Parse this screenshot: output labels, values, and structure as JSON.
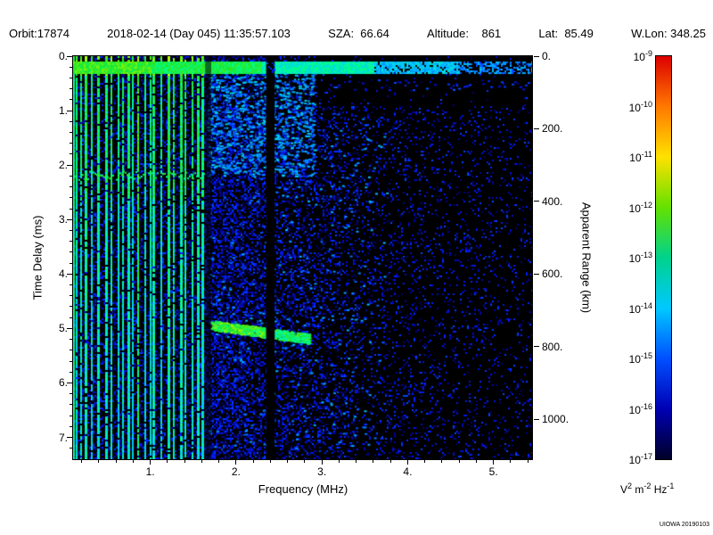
{
  "header": {
    "orbit": "Orbit:17874",
    "datetime": "2018-02-14 (Day 045) 11:35:57.103",
    "sza": "SZA:  66.64",
    "altitude": "Altitude:    861",
    "lat": "Lat:  85.49",
    "wlon": "W.Lon: 348.25"
  },
  "credit": "UIOWA 20190103",
  "chart_data": {
    "type": "heatmap",
    "description": "Radar sounder ionogram: received spectral density versus frequency and time delay; bright vertical electron plasma oscillation harmonics below 1.6 MHz, strong horizontal band near 0.2 ms delay across all frequencies, ionospheric echo near 5 ms between 1.7 and 2.9 MHz, diffuse blue noise cloud fading toward high frequency, dark absorption gap near 2.4 MHz",
    "xlabel": "Frequency (MHz)",
    "ylabel_left": "Time Delay (ms)",
    "ylabel_right": "Apparent Range (km)",
    "x_range": [
      0.1,
      5.45
    ],
    "x_ticks": [
      1,
      2,
      3,
      4,
      5
    ],
    "x_minor_step": 0.2,
    "y_range": [
      0,
      7.4
    ],
    "y_ticks": [
      0,
      1,
      2,
      3,
      4,
      5,
      6,
      7
    ],
    "y_minor_step": 0.2,
    "y2_ticks_km": [
      0,
      200,
      400,
      600,
      800,
      1000
    ],
    "range_km_per_ms": 150,
    "colorbar": {
      "scale": "log",
      "tick_exponents": [
        -9,
        -10,
        -11,
        -12,
        -13,
        -14,
        -15,
        -16,
        -17
      ],
      "units_parts": [
        [
          "V",
          "2"
        ],
        [
          " m",
          "-2"
        ],
        [
          " Hz",
          "-1"
        ]
      ],
      "gradient_top_to_bottom": [
        "#dc0000",
        "#ff7800",
        "#ffe100",
        "#64e100",
        "#00d28c",
        "#00c8ff",
        "#0050ff",
        "#0000b4",
        "#000028"
      ]
    },
    "features": {
      "seed": 20190103,
      "plasma_oscillation_harmonics": {
        "f_start": 0.135,
        "f_end": 1.62,
        "mean_spacing_mhz": 0.065,
        "intensity": 0.52
      },
      "surface_reflection_band": {
        "t_ms": 0.2,
        "thickness_ms": 0.2,
        "intensity": 0.58
      },
      "harmonic_cross_band": {
        "t_ms": 2.2,
        "f_max": 1.63,
        "intensity": 0.55
      },
      "ionospheric_echo": {
        "t_ms": 5.05,
        "f_start": 1.7,
        "f_end": 2.85,
        "intensity": 0.6
      },
      "absorption_gap_mhz": [
        2.35,
        2.45
      ],
      "boundary_gap_mhz": [
        1.64,
        1.71
      ],
      "noise_cloud": {
        "f_peak": 1.8,
        "decay_mhz": 1.7,
        "base_density": 0.4
      }
    }
  }
}
